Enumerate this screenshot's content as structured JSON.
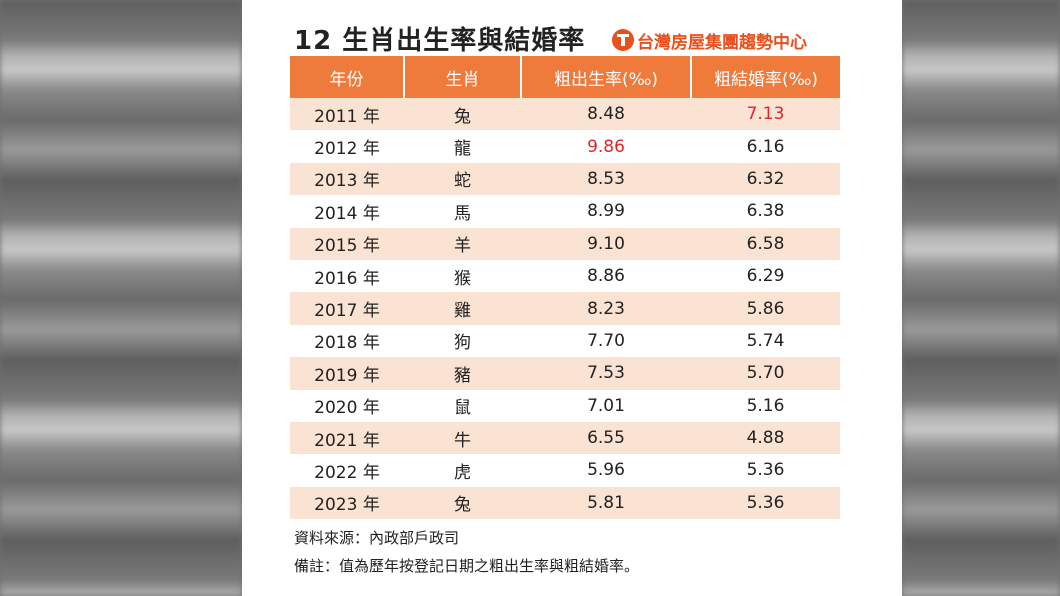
{
  "title": "12 生肖出生率與結婚率",
  "brand": {
    "name": "台灣房屋集團趨勢中心",
    "logo_icon": "brand-logo-icon",
    "color": "#e8501e"
  },
  "table": {
    "headers": [
      "年份",
      "生肖",
      "粗出生率(‰)",
      "粗結婚率(‰)"
    ],
    "rows": [
      {
        "year": "2011 年",
        "zodiac": "兔",
        "birth": "8.48",
        "marriage": "7.13",
        "highlight": "marriage"
      },
      {
        "year": "2012 年",
        "zodiac": "龍",
        "birth": "9.86",
        "marriage": "6.16",
        "highlight": "birth"
      },
      {
        "year": "2013 年",
        "zodiac": "蛇",
        "birth": "8.53",
        "marriage": "6.32",
        "highlight": ""
      },
      {
        "year": "2014 年",
        "zodiac": "馬",
        "birth": "8.99",
        "marriage": "6.38",
        "highlight": ""
      },
      {
        "year": "2015 年",
        "zodiac": "羊",
        "birth": "9.10",
        "marriage": "6.58",
        "highlight": ""
      },
      {
        "year": "2016 年",
        "zodiac": "猴",
        "birth": "8.86",
        "marriage": "6.29",
        "highlight": ""
      },
      {
        "year": "2017 年",
        "zodiac": "雞",
        "birth": "8.23",
        "marriage": "5.86",
        "highlight": ""
      },
      {
        "year": "2018 年",
        "zodiac": "狗",
        "birth": "7.70",
        "marriage": "5.74",
        "highlight": ""
      },
      {
        "year": "2019 年",
        "zodiac": "豬",
        "birth": "7.53",
        "marriage": "5.70",
        "highlight": ""
      },
      {
        "year": "2020 年",
        "zodiac": "鼠",
        "birth": "7.01",
        "marriage": "5.16",
        "highlight": ""
      },
      {
        "year": "2021 年",
        "zodiac": "牛",
        "birth": "6.55",
        "marriage": "4.88",
        "highlight": ""
      },
      {
        "year": "2022 年",
        "zodiac": "虎",
        "birth": "5.96",
        "marriage": "5.36",
        "highlight": ""
      },
      {
        "year": "2023 年",
        "zodiac": "兔",
        "birth": "5.81",
        "marriage": "5.36",
        "highlight": ""
      }
    ]
  },
  "notes": {
    "source": "資料來源：內政部戶政司",
    "remark": "備註：值為歷年按登記日期之粗出生率與粗結婚率。"
  },
  "colors": {
    "header": "#ee7a3c",
    "stripe": "#fbe3d3",
    "highlight": "#e0242c"
  }
}
